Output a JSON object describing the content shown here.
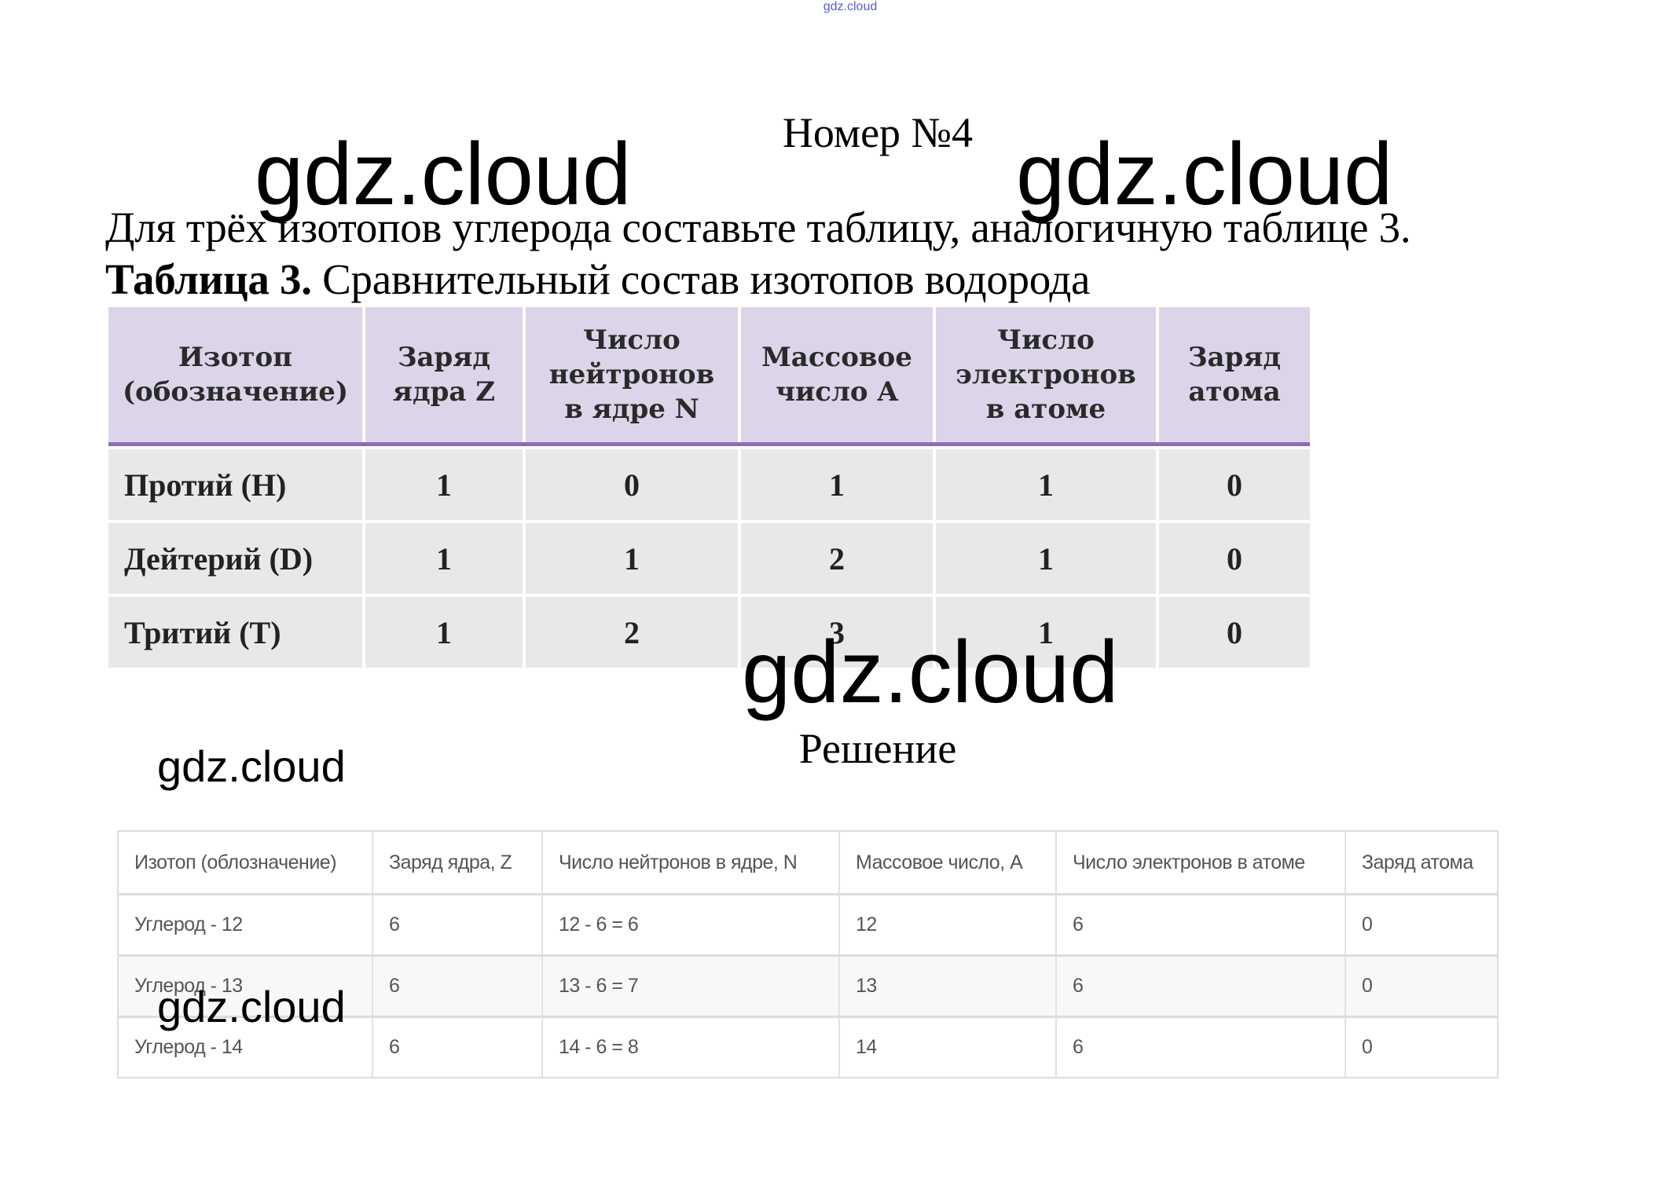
{
  "watermark": "gdz.cloud",
  "header": {
    "title": "Номер №4"
  },
  "task": "Для трёх изотопов углерода составьте таблицу, аналогичную таблице 3.",
  "caption": {
    "label": "Таблица 3.",
    "text": " Сравнительный состав изотопов водорода"
  },
  "table1": {
    "columns": [
      "Изотоп\n(обозначение)",
      "Заряд\nядра Z",
      "Число\nнейтронов\nв ядре N",
      "Массовое\nчисло A",
      "Число\nэлектронов\nв атоме",
      "Заряд\nатома"
    ],
    "rows": [
      [
        "Протий (H)",
        "1",
        "0",
        "1",
        "1",
        "0"
      ],
      [
        "Дейтерий (D)",
        "1",
        "1",
        "2",
        "1",
        "0"
      ],
      [
        "Тритий (T)",
        "1",
        "2",
        "3",
        "1",
        "0"
      ]
    ],
    "header_color": "#dcd4e8",
    "accent_color": "#8d6cba"
  },
  "solution_label": "Решение",
  "table2": {
    "columns": [
      "Изотоп (облозначение)",
      "Заряд ядра, Z",
      "Число нейтронов в ядре, N",
      "Массовое число, A",
      "Число электронов в атоме",
      "Заряд атома"
    ],
    "rows": [
      [
        "Углерод - 12",
        "6",
        "12 - 6 = 6",
        "12",
        "6",
        "0"
      ],
      [
        "Углерод - 13",
        "6",
        "13 - 6 = 7",
        "13",
        "6",
        "0"
      ],
      [
        "Углерод - 14",
        "6",
        "14 - 6 = 8",
        "14",
        "6",
        "0"
      ]
    ]
  }
}
